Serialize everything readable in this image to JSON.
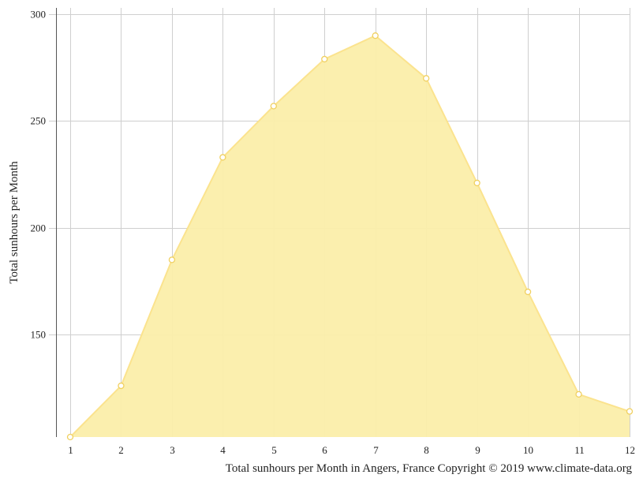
{
  "chart_data": {
    "type": "area",
    "x": [
      1,
      2,
      3,
      4,
      5,
      6,
      7,
      8,
      9,
      10,
      11,
      12
    ],
    "series": [
      {
        "values": [
          102,
          126,
          185,
          233,
          257,
          279,
          290,
          270,
          221,
          170,
          122,
          114
        ]
      }
    ],
    "xlim": [
      1,
      12
    ],
    "ylim": [
      102,
      303
    ],
    "yticks": [
      150,
      200,
      250,
      300
    ],
    "ylabel": "Total sunhours per Month",
    "xlabel": "",
    "caption": "Total sunhours per Month in Angers, France Copyright © 2019 www.climate-data.org",
    "grid": true,
    "colors": {
      "fill": "#fbeeaa",
      "line": "#fbe38e",
      "marker_fill": "#ffffff",
      "marker_stroke": "#f0d060",
      "axis": "#555555"
    }
  }
}
